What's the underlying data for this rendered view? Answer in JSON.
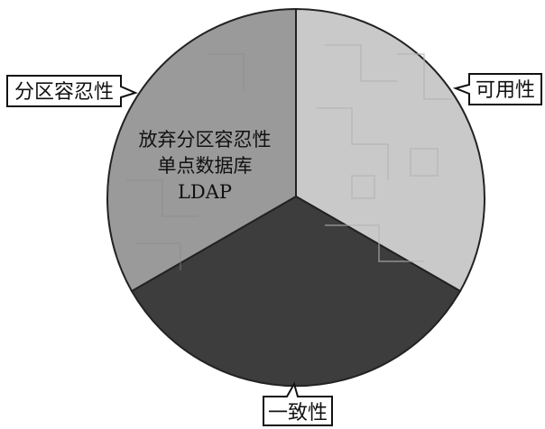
{
  "diagram": {
    "segments": [
      {
        "id": "availability",
        "label": "可用性",
        "color": "#c9c9c9"
      },
      {
        "id": "consistency",
        "label": "一致性",
        "color": "#3d3d3d"
      },
      {
        "id": "partition",
        "label": "分区容忍性",
        "color": "#9a9a9a"
      }
    ],
    "inner_text": [
      "放弃分区容忍性",
      "单点数据库",
      "LDAP"
    ]
  }
}
